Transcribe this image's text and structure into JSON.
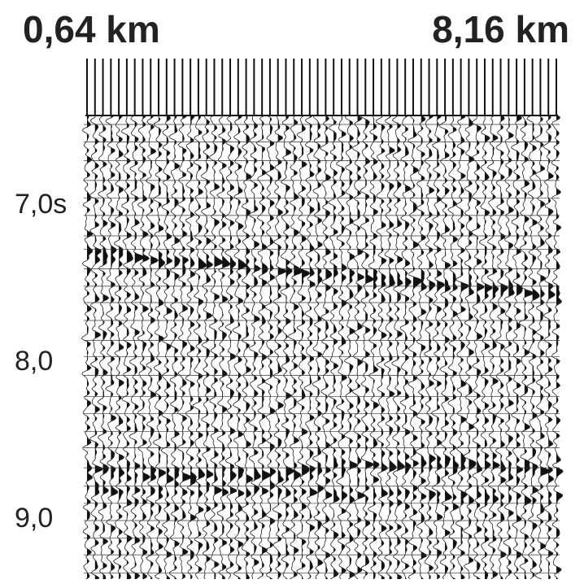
{
  "header": {
    "left_label": "0,64 km",
    "right_label": "8,16 km"
  },
  "time_axis": {
    "labels": [
      "7,0s",
      "8,0",
      "9,0"
    ]
  }
}
